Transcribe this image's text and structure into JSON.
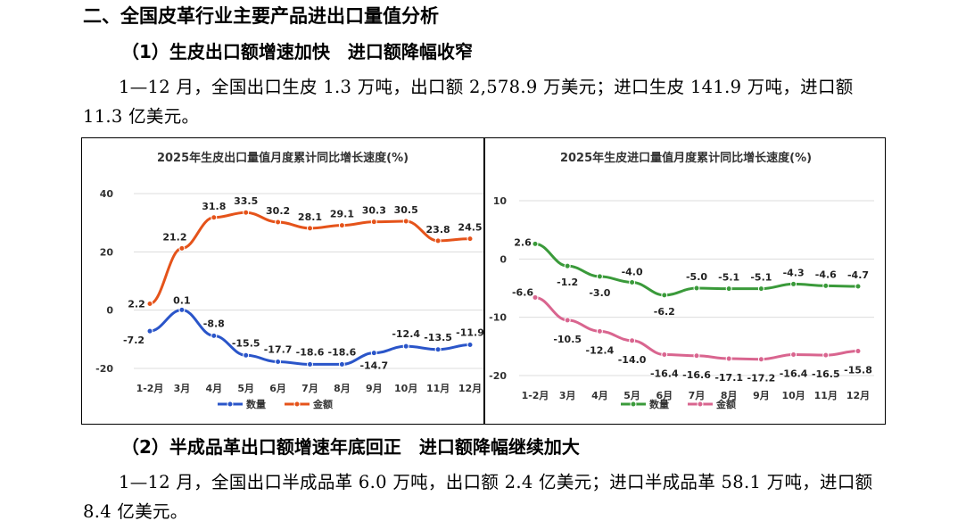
{
  "section_title": "二、全国皮革行业主要产品进出口量值分析",
  "subsection1": {
    "part1": "（1）生皮出口额增速加快",
    "part2": "进口额降幅收窄"
  },
  "paragraph1": "1—12 月，全国出口生皮 1.3 万吨，出口额 2,578.9 万美元；进口生皮 141.9 万吨，进口额 11.3 亿美元。",
  "subsection2": {
    "part1": "（2）半成品革出口额增速年底回正",
    "part2": "进口额降幅继续加大"
  },
  "paragraph2": "1—12 月，全国出口半成品革 6.0 万吨，出口额 2.4 亿美元；进口半成品革 58.1 万吨，进口额 8.4 亿美元。",
  "chart_data": [
    {
      "type": "line",
      "title": "2025年生皮出口量值月度累计同比增长速度(%)",
      "categories": [
        "1-2月",
        "3月",
        "4月",
        "5月",
        "6月",
        "7月",
        "8月",
        "9月",
        "10月",
        "11月",
        "12月"
      ],
      "ylim": [
        -20,
        40
      ],
      "yticks": [
        -20,
        0,
        20,
        40
      ],
      "grid": true,
      "legend": "bottom",
      "series": [
        {
          "name": "数量",
          "color": "#2a55c9",
          "values": [
            -7.2,
            0.1,
            -8.8,
            -15.5,
            -17.7,
            -18.6,
            -18.6,
            -14.7,
            -12.4,
            -13.5,
            -11.9
          ],
          "labels": [
            "-7.2",
            "0.1",
            "-8.8",
            "-15.5",
            "-17.7",
            "-18.6",
            "-18.6",
            "-14.7",
            "-12.4",
            "-13.5",
            "-11.9"
          ]
        },
        {
          "name": "金额",
          "color": "#e5531a",
          "values": [
            2.2,
            21.2,
            31.8,
            33.5,
            30.2,
            28.1,
            29.1,
            30.3,
            30.5,
            23.8,
            24.5
          ],
          "labels": [
            "2.2",
            "21.2",
            "31.8",
            "33.5",
            "30.2",
            "28.1",
            "29.1",
            "30.3",
            "30.5",
            "23.8",
            "24.5"
          ]
        }
      ]
    },
    {
      "type": "line",
      "title": "2025年生皮进口量值月度累计同比增长速度(%)",
      "categories": [
        "1-2月",
        "3月",
        "4月",
        "5月",
        "6月",
        "7月",
        "8月",
        "9月",
        "10月",
        "11月",
        "12月"
      ],
      "ylim": [
        -20,
        10
      ],
      "yticks": [
        -20,
        -10,
        0,
        10
      ],
      "grid": true,
      "legend": "bottom",
      "series": [
        {
          "name": "数量",
          "color": "#3a9a3a",
          "values": [
            2.6,
            -1.2,
            -3.0,
            -4.0,
            -6.2,
            -5.0,
            -5.1,
            -5.1,
            -4.3,
            -4.6,
            -4.7
          ],
          "labels": [
            "2.6",
            "-1.2",
            "-3.0",
            "-4.0",
            "-6.2",
            "-5.0",
            "-5.1",
            "-5.1",
            "-4.3",
            "-4.6",
            "-4.7"
          ]
        },
        {
          "name": "金额",
          "color": "#d9658f",
          "values": [
            -6.6,
            -10.5,
            -12.4,
            -14.0,
            -16.4,
            -16.6,
            -17.1,
            -17.2,
            -16.4,
            -16.5,
            -15.8
          ],
          "labels": [
            "-6.6",
            "-10.5",
            "-12.4",
            "-14.0",
            "-16.4",
            "-16.6",
            "-17.1",
            "-17.2",
            "-16.4",
            "-16.5",
            "-15.8"
          ]
        }
      ]
    }
  ]
}
